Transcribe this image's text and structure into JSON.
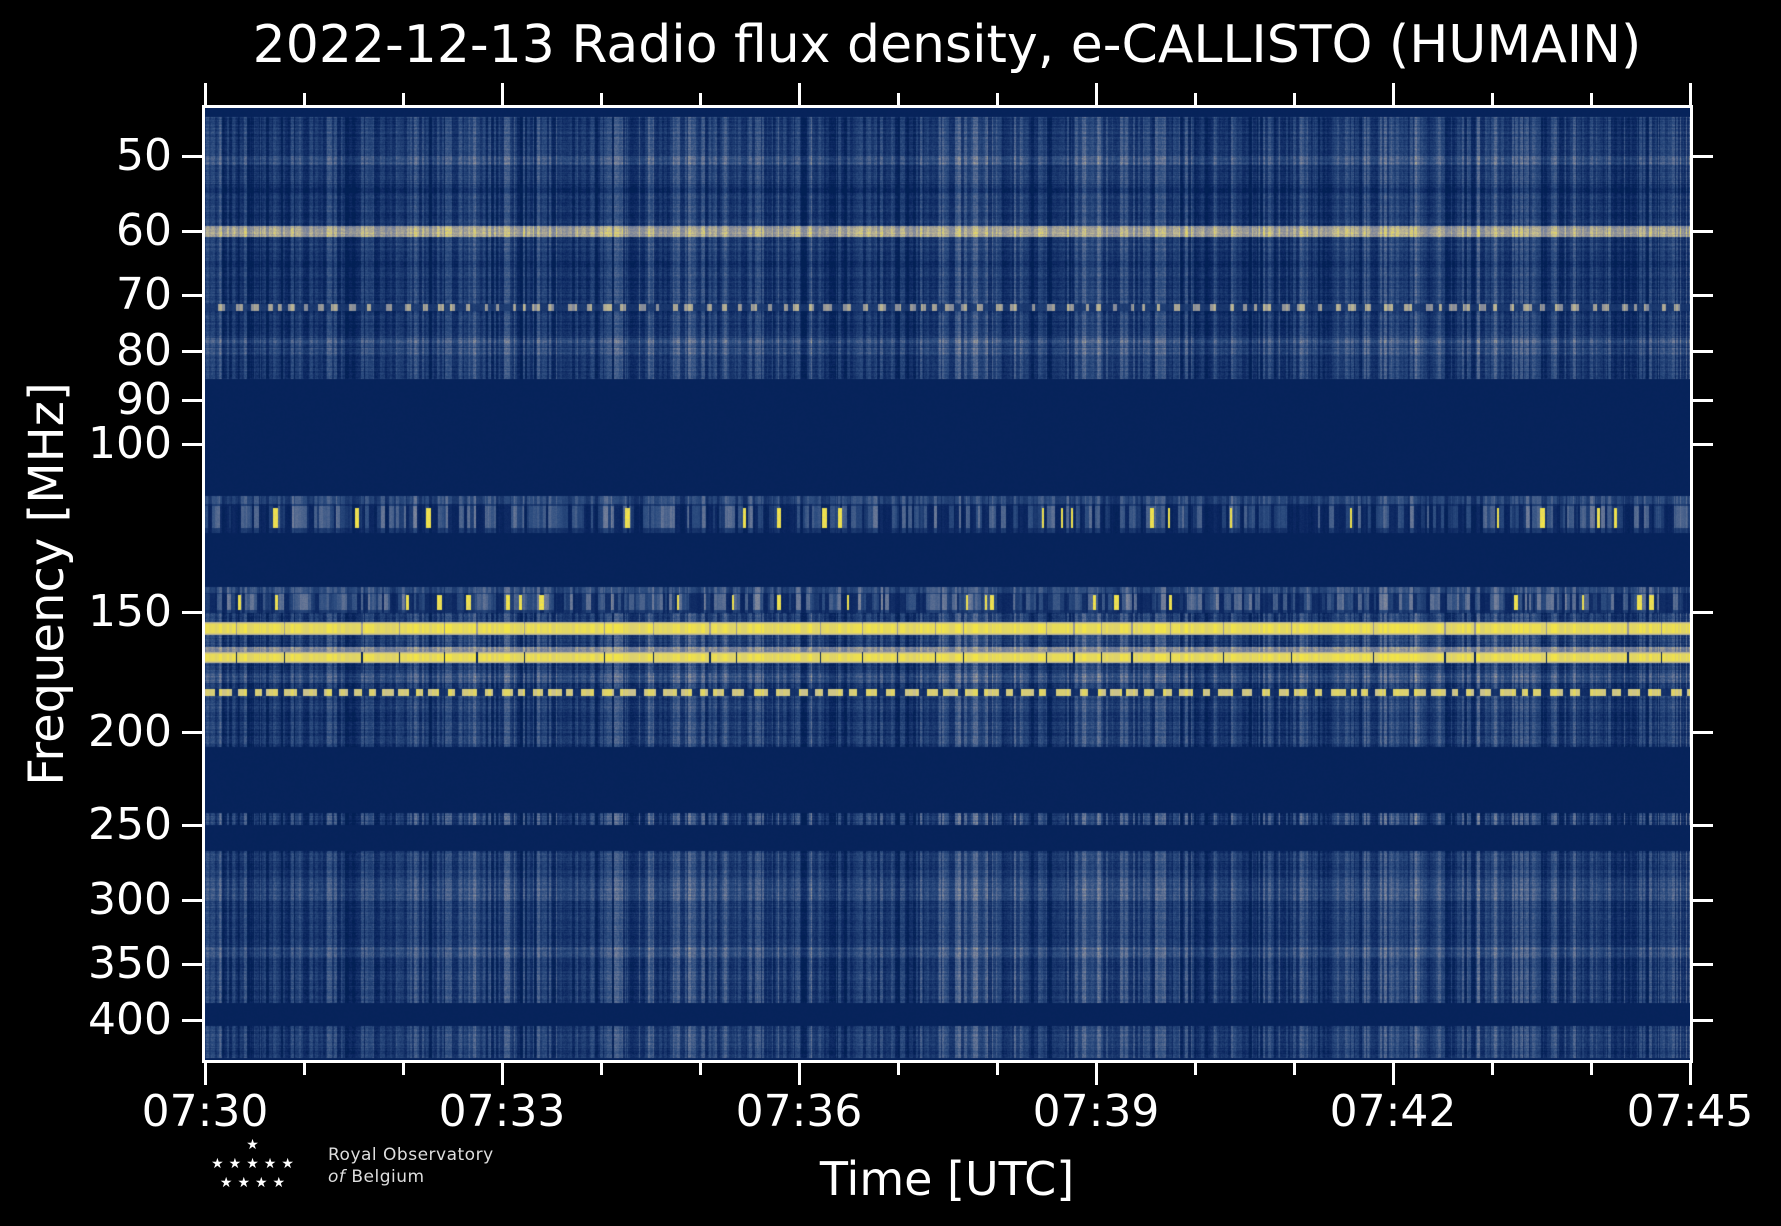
{
  "page": {
    "background": "#000000",
    "text_color": "#ffffff"
  },
  "chart_data": {
    "type": "heatmap",
    "subtype": "radio-spectrogram",
    "title": "2022-12-13 Radio flux density, e-CALLISTO (HUMAIN)",
    "xlabel": "Time [UTC]",
    "ylabel": "Frequency [MHz]",
    "x_tick_labels": [
      "07:30",
      "07:33",
      "07:36",
      "07:39",
      "07:42",
      "07:45"
    ],
    "x_major_tick_minutes": 3,
    "x_minor_tick_minutes": 1,
    "time_range_utc": [
      "07:30",
      "07:45"
    ],
    "y_scale": "log",
    "y_axis_inverted": true,
    "y_tick_labels": [
      50,
      60,
      70,
      80,
      90,
      100,
      150,
      200,
      250,
      300,
      350,
      400
    ],
    "freq_range_mhz": [
      44.6,
      440.4
    ],
    "grid": false,
    "legend": "none",
    "colormap_stops": [
      [
        0.0,
        "#001f52"
      ],
      [
        0.1,
        "#0a255f"
      ],
      [
        0.25,
        "#1a386e"
      ],
      [
        0.4,
        "#2d4d80"
      ],
      [
        0.55,
        "#4f668e"
      ],
      [
        0.7,
        "#78829b"
      ],
      [
        0.8,
        "#a09e96"
      ],
      [
        0.9,
        "#c8c091"
      ],
      [
        1.0,
        "#f8e93d"
      ]
    ],
    "quiet_color": "#00235a",
    "bright_line_color": "#f8e93d",
    "bands": [
      {
        "f_lo": 44.6,
        "f_hi": 45.6,
        "style": "quiet"
      },
      {
        "f_lo": 45.6,
        "f_hi": 50.0,
        "style": "noise",
        "base": 0.3
      },
      {
        "f_lo": 50.0,
        "f_hi": 51.2,
        "style": "noise",
        "base": 0.44
      },
      {
        "f_lo": 51.2,
        "f_hi": 53.6,
        "style": "noise",
        "base": 0.3
      },
      {
        "f_lo": 53.6,
        "f_hi": 54.7,
        "style": "noise",
        "base": 0.2
      },
      {
        "f_lo": 54.7,
        "f_hi": 59.2,
        "style": "noise",
        "base": 0.28
      },
      {
        "f_lo": 59.2,
        "f_hi": 60.9,
        "style": "tan",
        "base": 0.82
      },
      {
        "f_lo": 60.9,
        "f_hi": 64.4,
        "style": "noise",
        "base": 0.3
      },
      {
        "f_lo": 64.4,
        "f_hi": 65.6,
        "style": "noise",
        "base": 0.2
      },
      {
        "f_lo": 65.6,
        "f_hi": 71.4,
        "style": "noise",
        "base": 0.27
      },
      {
        "f_lo": 71.4,
        "f_hi": 72.7,
        "style": "tandash"
      },
      {
        "f_lo": 72.7,
        "f_hi": 76.6,
        "style": "noise",
        "base": 0.26
      },
      {
        "f_lo": 76.6,
        "f_hi": 77.6,
        "style": "noise",
        "base": 0.31
      },
      {
        "f_lo": 77.6,
        "f_hi": 78.8,
        "style": "noise",
        "base": 0.46
      },
      {
        "f_lo": 78.8,
        "f_hi": 79.5,
        "style": "noise",
        "base": 0.3
      },
      {
        "f_lo": 79.5,
        "f_hi": 80.7,
        "style": "noise",
        "base": 0.44
      },
      {
        "f_lo": 80.7,
        "f_hi": 85.6,
        "style": "noise",
        "base": 0.28
      },
      {
        "f_lo": 85.6,
        "f_hi": 113.4,
        "style": "quiet"
      },
      {
        "f_lo": 113.4,
        "f_hi": 124.0,
        "style": "speckle",
        "base": 0.1,
        "density": 0.55,
        "yellow_prob": 0.03
      },
      {
        "f_lo": 124.0,
        "f_hi": 141.3,
        "style": "quiet"
      },
      {
        "f_lo": 141.3,
        "f_hi": 150.4,
        "style": "speckle",
        "base": 0.14,
        "density": 0.6,
        "yellow_prob": 0.025
      },
      {
        "f_lo": 150.4,
        "f_hi": 153.7,
        "style": "noise",
        "base": 0.3,
        "ticks": 0.5
      },
      {
        "f_lo": 153.7,
        "f_hi": 158.6,
        "style": "yellow",
        "ticks": 0.4
      },
      {
        "f_lo": 158.6,
        "f_hi": 163.2,
        "style": "noise",
        "base": 0.33,
        "ticks": 0.3
      },
      {
        "f_lo": 163.2,
        "f_hi": 165.2,
        "style": "tan",
        "base": 0.72
      },
      {
        "f_lo": 165.2,
        "f_hi": 169.6,
        "style": "yellow",
        "ticks": 1.0
      },
      {
        "f_lo": 169.6,
        "f_hi": 173.7,
        "style": "noise",
        "base": 0.3,
        "ticks": 0.5
      },
      {
        "f_lo": 173.7,
        "f_hi": 178.0,
        "style": "noise",
        "base": 0.46
      },
      {
        "f_lo": 178.0,
        "f_hi": 180.6,
        "style": "noise",
        "base": 0.22
      },
      {
        "f_lo": 180.6,
        "f_hi": 183.6,
        "style": "dash"
      },
      {
        "f_lo": 183.6,
        "f_hi": 207.2,
        "style": "noise",
        "base": 0.3
      },
      {
        "f_lo": 207.2,
        "f_hi": 242.9,
        "style": "quiet"
      },
      {
        "f_lo": 242.9,
        "f_hi": 250.1,
        "style": "noise",
        "base": 0.3,
        "contrast": 1.5
      },
      {
        "f_lo": 250.1,
        "f_hi": 266.2,
        "style": "quiet"
      },
      {
        "f_lo": 266.2,
        "f_hi": 284.1,
        "style": "noise",
        "base": 0.3
      },
      {
        "f_lo": 284.1,
        "f_hi": 300.2,
        "style": "noise",
        "base": 0.43
      },
      {
        "f_lo": 300.2,
        "f_hi": 335.4,
        "style": "noise",
        "base": 0.3
      },
      {
        "f_lo": 335.4,
        "f_hi": 343.6,
        "style": "noise",
        "base": 0.44
      },
      {
        "f_lo": 343.6,
        "f_hi": 383.9,
        "style": "noise",
        "base": 0.3,
        "contrast": 1.2
      },
      {
        "f_lo": 383.9,
        "f_hi": 405.8,
        "style": "quiet"
      },
      {
        "f_lo": 405.8,
        "f_hi": 438.0,
        "style": "noise",
        "base": 0.31
      },
      {
        "f_lo": 438.0,
        "f_hi": 440.4,
        "style": "quiet"
      }
    ]
  },
  "footer": {
    "credit_line1": "Royal Observatory",
    "credit_word_italic": "of",
    "credit_line2": "Belgium",
    "star_rows": [
      1,
      5,
      4
    ]
  }
}
